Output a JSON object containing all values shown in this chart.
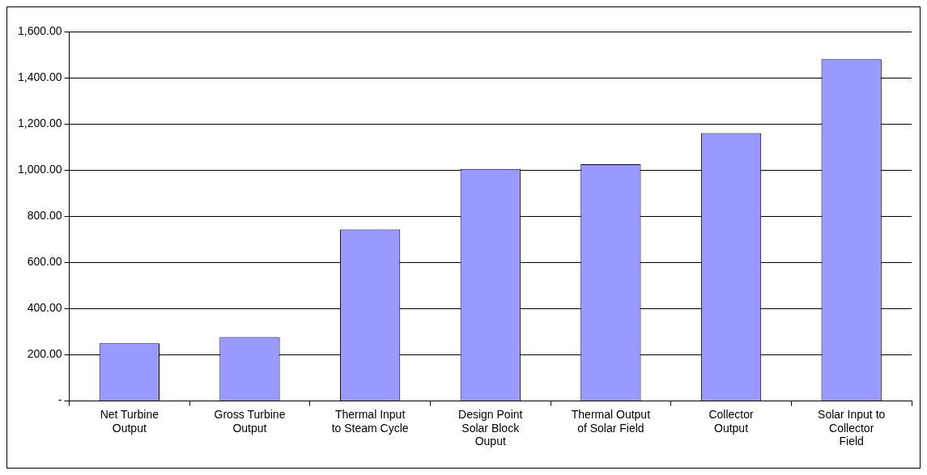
{
  "chart_data": {
    "type": "bar",
    "categories": [
      "Net Turbine Output",
      "Gross Turbine Output",
      "Thermal Input to Steam Cycle",
      "Design Point Solar Block Ouput",
      "Thermal Output of Solar Field",
      "Collector Output",
      "Solar Input to Collector Field"
    ],
    "values": [
      250,
      277,
      743,
      1005,
      1025,
      1160,
      1480
    ],
    "color": "#9999ff",
    "ylim": [
      0,
      1600
    ],
    "yticks": [
      {
        "value": 0,
        "label": "-"
      },
      {
        "value": 200,
        "label": "200.00"
      },
      {
        "value": 400,
        "label": "400.00"
      },
      {
        "value": 600,
        "label": "600.00"
      },
      {
        "value": 800,
        "label": "800.00"
      },
      {
        "value": 1000,
        "label": "1,000.00"
      },
      {
        "value": 1200,
        "label": "1,200.00"
      },
      {
        "value": 1400,
        "label": "1,400.00"
      },
      {
        "value": 1600,
        "label": "1,600.00"
      }
    ],
    "grid": "y",
    "legend": false
  }
}
